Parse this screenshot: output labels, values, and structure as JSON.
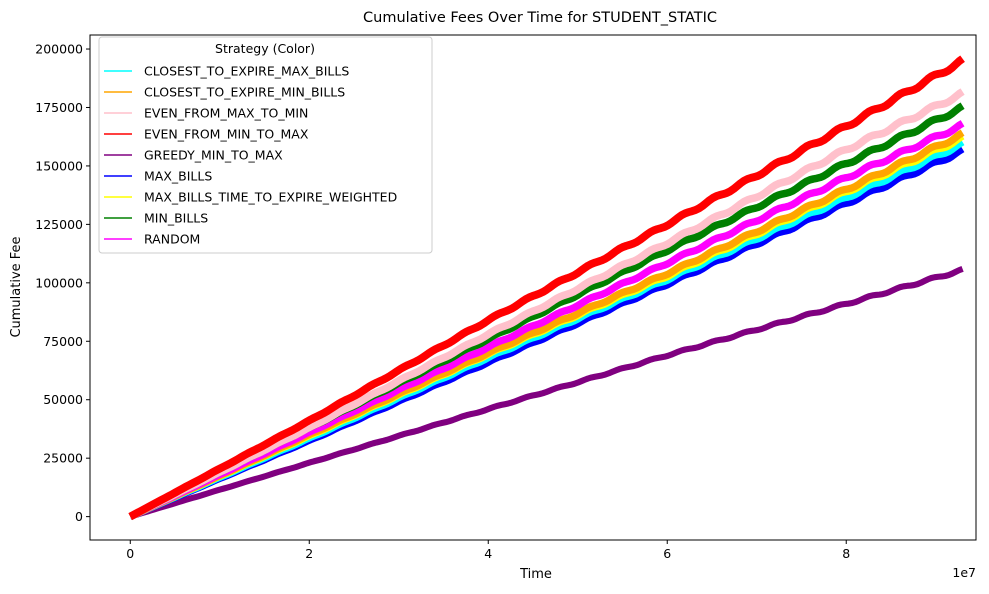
{
  "chart_data": {
    "type": "line",
    "title": "Cumulative Fees Over Time for STUDENT_STATIC",
    "xlabel": "Time",
    "ylabel": "Cumulative Fee",
    "x_offset_label": "1e7",
    "xlim": [
      -0.45,
      9.45
    ],
    "ylim": [
      -10000,
      206000
    ],
    "x_ticks": [
      0,
      2,
      4,
      6,
      8
    ],
    "x_tick_labels": [
      "0",
      "2",
      "4",
      "6",
      "8"
    ],
    "y_ticks": [
      0,
      25000,
      50000,
      75000,
      100000,
      125000,
      150000,
      175000,
      200000
    ],
    "y_tick_labels": [
      "0",
      "25000",
      "50000",
      "75000",
      "100000",
      "125000",
      "150000",
      "175000",
      "200000"
    ],
    "grid": false,
    "legend_title": "Strategy (Color)",
    "legend_position": "top-left",
    "series": [
      {
        "name": "CLOSEST_TO_EXPIRE_MAX_BILLS",
        "color": "#00ffff",
        "x": [
          0,
          2,
          4,
          6,
          8,
          9.3
        ],
        "y": [
          0,
          33500,
          68000,
          101500,
          136500,
          159500
        ]
      },
      {
        "name": "CLOSEST_TO_EXPIRE_MIN_BILLS",
        "color": "#ffa500",
        "x": [
          0,
          2,
          4,
          6,
          8,
          9.3
        ],
        "y": [
          0,
          35000,
          70000,
          104000,
          140000,
          163500
        ]
      },
      {
        "name": "EVEN_FROM_MAX_TO_MIN",
        "color": "#ffc0cb",
        "x": [
          0,
          2,
          4,
          6,
          8,
          9.3
        ],
        "y": [
          0,
          38000,
          78000,
          117000,
          157000,
          181000
        ]
      },
      {
        "name": "EVEN_FROM_MIN_TO_MAX",
        "color": "#ff0000",
        "x": [
          0,
          2,
          4,
          6,
          8,
          9.3
        ],
        "y": [
          0,
          41000,
          84000,
          125000,
          167000,
          195000
        ]
      },
      {
        "name": "GREEDY_MIN_TO_MAX",
        "color": "#800080",
        "x": [
          0,
          2,
          4,
          6,
          8,
          9.3
        ],
        "y": [
          0,
          23000,
          46000,
          69000,
          91000,
          105500
        ]
      },
      {
        "name": "MAX_BILLS",
        "color": "#0000ff",
        "x": [
          0,
          2,
          4,
          6,
          8,
          9.3
        ],
        "y": [
          0,
          32500,
          66000,
          99500,
          134000,
          156500
        ]
      },
      {
        "name": "MAX_BILLS_TIME_TO_EXPIRE_WEIGHTED",
        "color": "#ffff00",
        "x": [
          0,
          2,
          4,
          6,
          8,
          9.3
        ],
        "y": [
          0,
          34500,
          69500,
          103000,
          139000,
          162000
        ]
      },
      {
        "name": "MIN_BILLS",
        "color": "#008000",
        "x": [
          0,
          2,
          4,
          6,
          8,
          9.3
        ],
        "y": [
          0,
          38000,
          76000,
          114000,
          151000,
          175000
        ]
      },
      {
        "name": "RANDOM",
        "color": "#ff00ff",
        "x": [
          0,
          2,
          4,
          6,
          8,
          9.3
        ],
        "y": [
          0,
          36000,
          72500,
          108500,
          145000,
          167500
        ]
      }
    ],
    "draw_order": [
      "GREEDY_MIN_TO_MAX",
      "MAX_BILLS",
      "CLOSEST_TO_EXPIRE_MAX_BILLS",
      "MAX_BILLS_TIME_TO_EXPIRE_WEIGHTED",
      "CLOSEST_TO_EXPIRE_MIN_BILLS",
      "RANDOM",
      "MIN_BILLS",
      "EVEN_FROM_MAX_TO_MIN",
      "EVEN_FROM_MIN_TO_MAX"
    ]
  }
}
